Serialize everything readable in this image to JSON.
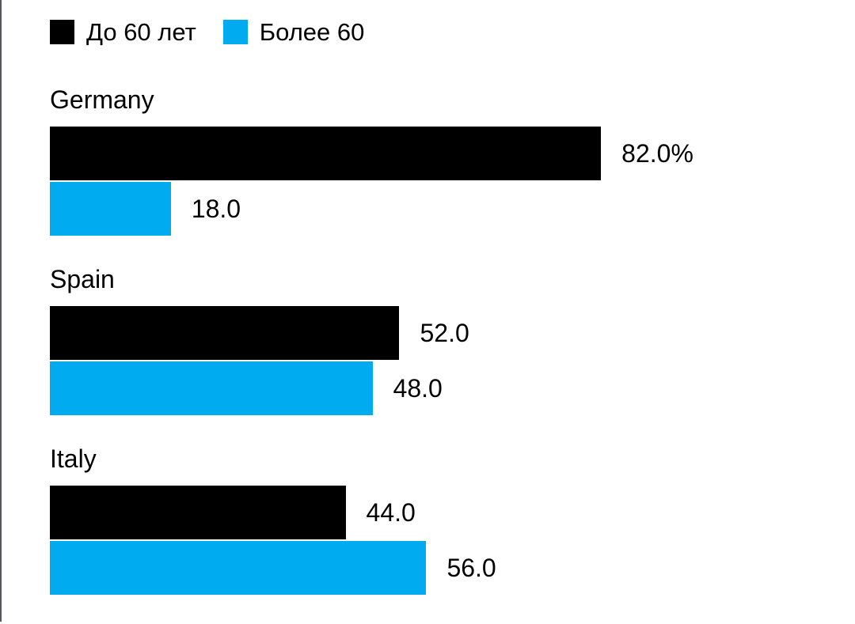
{
  "page": {
    "background": "#ffffff",
    "left_edge_line_color": "#55585c"
  },
  "legend": {
    "items": [
      {
        "label": "До 60 лет",
        "color": "#000000"
      },
      {
        "label": "Более 60",
        "color": "#00abf0"
      }
    ]
  },
  "chart_data": {
    "type": "bar",
    "orientation": "horizontal",
    "title": "",
    "categories": [
      "Germany",
      "Spain",
      "Italy"
    ],
    "series": [
      {
        "name": "До 60 лет",
        "color": "#000000",
        "values": [
          82.0,
          52.0,
          44.0
        ]
      },
      {
        "name": "Более 60",
        "color": "#00abf0",
        "values": [
          18.0,
          48.0,
          56.0
        ]
      }
    ],
    "value_labels": [
      [
        "82.0%",
        "18.0"
      ],
      [
        "52.0",
        "48.0"
      ],
      [
        "44.0",
        "56.0"
      ]
    ],
    "unit": "%",
    "xlim": [
      0,
      100
    ],
    "grid": false,
    "axis_ticks": "none",
    "legend_position": "top",
    "value_label_position": "right-of-bar"
  }
}
